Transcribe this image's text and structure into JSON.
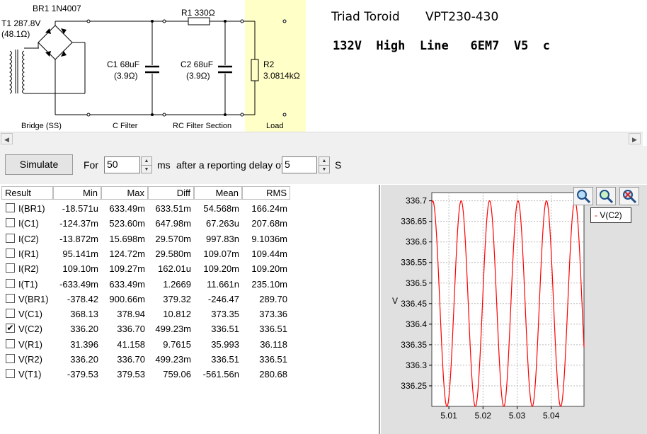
{
  "schematic": {
    "transformer_label": "T1 287.8V",
    "transformer_res": "(48.1Ω)",
    "bridge_label": "BR1 1N4007",
    "c1_label": "C1 68uF",
    "c1_res": "(3.9Ω)",
    "r1_label": "R1 330Ω",
    "c2_label": "C2 68uF",
    "c2_res": "(3.9Ω)",
    "r2_label": "R2",
    "r2_value": "3.0814kΩ",
    "section_bridge": "Bridge (SS)",
    "section_cfilter": "C Filter",
    "section_rc": "RC Filter Section",
    "section_load": "Load",
    "title_left": "Triad Toroid",
    "title_right": "VPT230-430",
    "subtitle": "132V  High  Line   6EM7  V5  c",
    "load_color": "#ffffc8"
  },
  "toolbar": {
    "simulate_label": "Simulate",
    "for_label": "For",
    "duration_value": "50",
    "ms_label": "ms",
    "delay_label": "after a reporting delay of",
    "delay_value": "5",
    "s_label": "S"
  },
  "table": {
    "headers": [
      "Result",
      "Min",
      "Max",
      "Diff",
      "Mean",
      "RMS"
    ],
    "rows": [
      {
        "name": "I(BR1)",
        "checked": false,
        "min": "-18.571u",
        "max": "633.49m",
        "diff": "633.51m",
        "mean": "54.568m",
        "rms": "166.24m"
      },
      {
        "name": "I(C1)",
        "checked": false,
        "min": "-124.37m",
        "max": "523.60m",
        "diff": "647.98m",
        "mean": "67.263u",
        "rms": "207.68m"
      },
      {
        "name": "I(C2)",
        "checked": false,
        "min": "-13.872m",
        "max": "15.698m",
        "diff": "29.570m",
        "mean": "997.83n",
        "rms": "9.1036m"
      },
      {
        "name": "I(R1)",
        "checked": false,
        "min": "95.141m",
        "max": "124.72m",
        "diff": "29.580m",
        "mean": "109.07m",
        "rms": "109.44m"
      },
      {
        "name": "I(R2)",
        "checked": false,
        "min": "109.10m",
        "max": "109.27m",
        "diff": "162.01u",
        "mean": "109.20m",
        "rms": "109.20m"
      },
      {
        "name": "I(T1)",
        "checked": false,
        "min": "-633.49m",
        "max": "633.49m",
        "diff": "1.2669",
        "mean": "11.661n",
        "rms": "235.10m"
      },
      {
        "name": "V(BR1)",
        "checked": false,
        "min": "-378.42",
        "max": "900.66m",
        "diff": "379.32",
        "mean": "-246.47",
        "rms": "289.70"
      },
      {
        "name": "V(C1)",
        "checked": false,
        "min": "368.13",
        "max": "378.94",
        "diff": "10.812",
        "mean": "373.35",
        "rms": "373.36"
      },
      {
        "name": "V(C2)",
        "checked": true,
        "min": "336.20",
        "max": "336.70",
        "diff": "499.23m",
        "mean": "336.51",
        "rms": "336.51"
      },
      {
        "name": "V(R1)",
        "checked": false,
        "min": "31.396",
        "max": "41.158",
        "diff": "9.7615",
        "mean": "35.993",
        "rms": "36.118"
      },
      {
        "name": "V(R2)",
        "checked": false,
        "min": "336.20",
        "max": "336.70",
        "diff": "499.23m",
        "mean": "336.51",
        "rms": "336.51"
      },
      {
        "name": "V(T1)",
        "checked": false,
        "min": "-379.53",
        "max": "379.53",
        "diff": "759.06",
        "mean": "-561.56n",
        "rms": "280.68"
      }
    ]
  },
  "plot": {
    "legend_label": "V(C2)",
    "zoom_icons": [
      "zoom-in-icon",
      "zoom-fit-icon",
      "zoom-out-icon"
    ],
    "trace_color": "#ff0000"
  },
  "chart_data": {
    "type": "line",
    "ylabel": "V",
    "xlabel": "",
    "x_ticks": [
      "5.01",
      "5.02",
      "5.03",
      "5.04"
    ],
    "y_ticks": [
      "336.7",
      "336.65",
      "336.6",
      "336.55",
      "336.5",
      "336.45",
      "336.4",
      "336.35",
      "336.3",
      "336.25"
    ],
    "xlim": [
      5.005,
      5.0496
    ],
    "ylim": [
      336.2,
      336.72
    ],
    "series": [
      {
        "name": "V(C2)",
        "min": 336.2,
        "max": 336.7,
        "period": 0.0083333,
        "phase_peak_x": 5.0136,
        "x_start": 5.005,
        "x_end": 5.0496
      }
    ],
    "grid": true,
    "legend": "top-right"
  }
}
